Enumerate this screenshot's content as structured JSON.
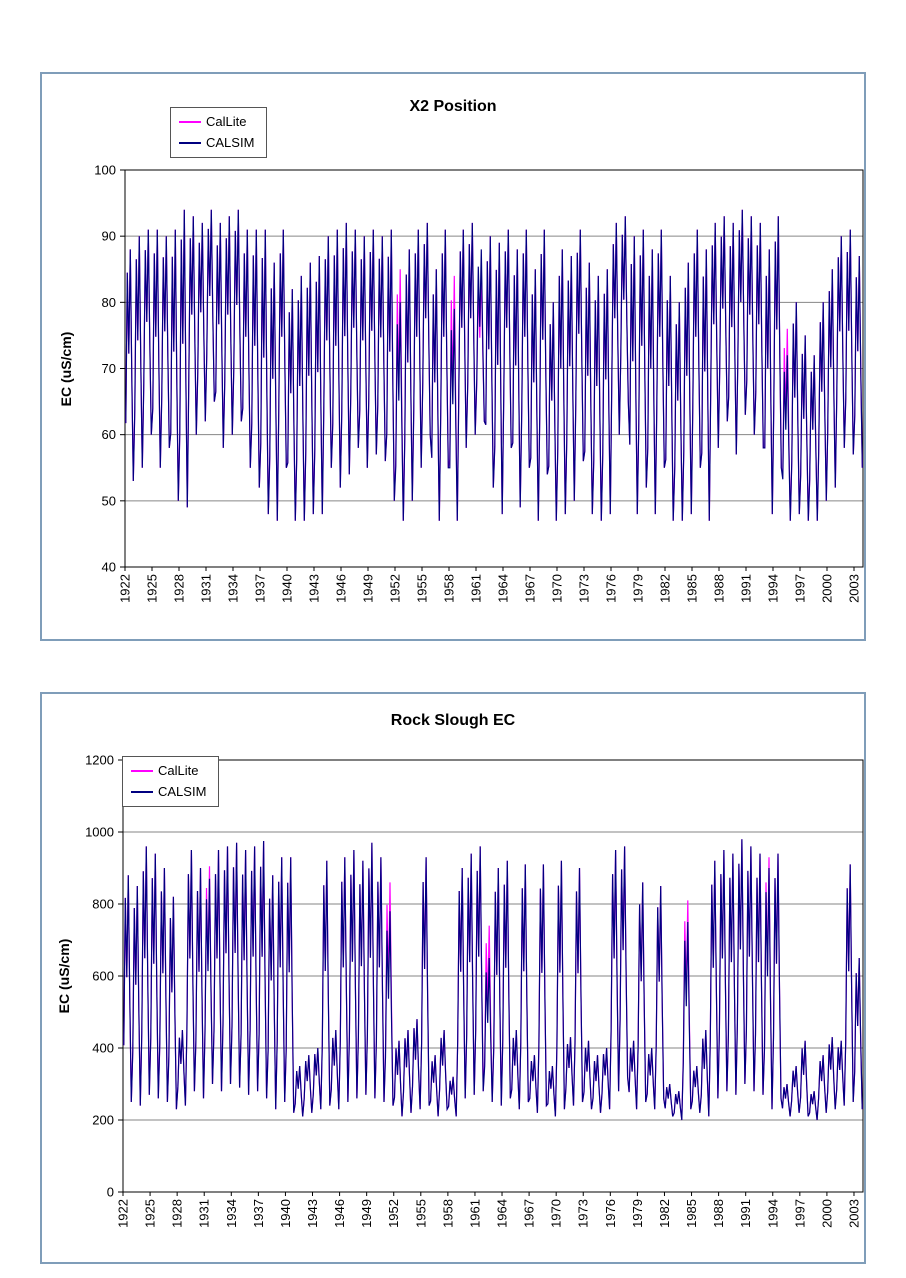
{
  "page": {
    "background": "#ffffff",
    "box_border_color": "#7f9db9"
  },
  "chart_data": [
    {
      "type": "line",
      "title": "X2 Position",
      "xlabel": "",
      "ylabel": "EC (uS/cm)",
      "ylim": [
        40,
        100
      ],
      "yticks": [
        40,
        50,
        60,
        70,
        80,
        90,
        100
      ],
      "grid": "horizontal",
      "legend_position": "top-left",
      "colors": {
        "grid": "#868686",
        "axis": "#000000",
        "plot_background": "#ffffff"
      },
      "x_axis": {
        "start_year": 1922,
        "end_year": 2003,
        "tick_labels": [
          "1922",
          "1925",
          "1928",
          "1931",
          "1934",
          "1937",
          "1940",
          "1943",
          "1946",
          "1949",
          "1952",
          "1955",
          "1958",
          "1961",
          "1964",
          "1967",
          "1970",
          "1973",
          "1976",
          "1979",
          "1982",
          "1985",
          "1988",
          "1991",
          "1994",
          "1997",
          "2000",
          "2003"
        ]
      },
      "note": "Monthly-style seasonal trace estimated from chart; each year is summarized by its annual max/min envelope and rendered with the intra-year fraction pattern. CalLite (magenta) nearly overlaps CALSIM (navy) except small deviations (e.g. 1952, 1958, 1961, 1995).",
      "intra_year_pattern": [
        0.25,
        0.9,
        0.55,
        1.0,
        0.45,
        0.0
      ],
      "series": [
        {
          "name": "CalLite",
          "color": "#FF00FF",
          "yearly_max": [
            88,
            90,
            91,
            91,
            90,
            91,
            94,
            93,
            92,
            94,
            92,
            93,
            94,
            91,
            91,
            91,
            86,
            91,
            82,
            84,
            86,
            87,
            90,
            91,
            92,
            91,
            90,
            91,
            90,
            91,
            85,
            88,
            91,
            92,
            85,
            91,
            84,
            91,
            92,
            85,
            90,
            89,
            91,
            88,
            91,
            85,
            91,
            80,
            88,
            87,
            91,
            86,
            84,
            85,
            92,
            93,
            90,
            91,
            88,
            91,
            84,
            80,
            86,
            91,
            88,
            92,
            93,
            92,
            94,
            93,
            92,
            88,
            93,
            76,
            80,
            75,
            72,
            80,
            85,
            90,
            91,
            87
          ],
          "yearly_min": [
            53,
            55,
            60,
            55,
            58,
            50,
            49,
            60,
            62,
            65,
            58,
            60,
            62,
            55,
            52,
            48,
            47,
            55,
            47,
            47,
            48,
            48,
            55,
            52,
            54,
            58,
            55,
            57,
            56,
            50,
            47,
            50,
            55,
            60,
            47,
            55,
            47,
            58,
            60,
            62,
            52,
            48,
            58,
            49,
            55,
            47,
            54,
            47,
            48,
            50,
            56,
            48,
            47,
            48,
            60,
            65,
            48,
            52,
            48,
            55,
            47,
            47,
            48,
            55,
            47,
            58,
            62,
            57,
            63,
            60,
            58,
            48,
            55,
            47,
            48,
            47,
            47,
            50,
            52,
            58,
            57,
            55
          ]
        },
        {
          "name": "CALSIM",
          "color": "#000080",
          "yearly_max": [
            88,
            90,
            91,
            91,
            90,
            91,
            94,
            93,
            92,
            94,
            92,
            93,
            94,
            91,
            91,
            91,
            86,
            91,
            82,
            84,
            86,
            87,
            90,
            91,
            92,
            91,
            90,
            91,
            90,
            91,
            80,
            88,
            91,
            92,
            85,
            91,
            79,
            91,
            92,
            88,
            90,
            89,
            91,
            88,
            91,
            85,
            91,
            80,
            88,
            87,
            91,
            86,
            84,
            85,
            92,
            93,
            90,
            91,
            88,
            91,
            84,
            80,
            86,
            91,
            88,
            92,
            93,
            92,
            94,
            93,
            92,
            88,
            93,
            72,
            80,
            75,
            72,
            80,
            85,
            90,
            91,
            87
          ],
          "yearly_min": [
            53,
            55,
            60,
            55,
            58,
            50,
            49,
            60,
            62,
            65,
            58,
            60,
            62,
            55,
            52,
            48,
            47,
            55,
            47,
            47,
            48,
            48,
            55,
            52,
            54,
            58,
            55,
            57,
            56,
            50,
            47,
            50,
            55,
            60,
            47,
            55,
            47,
            58,
            60,
            62,
            52,
            48,
            58,
            49,
            55,
            47,
            54,
            47,
            48,
            50,
            56,
            48,
            47,
            48,
            60,
            65,
            48,
            52,
            48,
            55,
            47,
            47,
            48,
            55,
            47,
            58,
            62,
            57,
            63,
            60,
            58,
            48,
            55,
            47,
            48,
            47,
            47,
            50,
            52,
            58,
            57,
            55
          ]
        }
      ]
    },
    {
      "type": "line",
      "title": "Rock Slough EC",
      "xlabel": "",
      "ylabel": "EC (uS/cm)",
      "ylim": [
        0,
        1200
      ],
      "yticks": [
        0,
        200,
        400,
        600,
        800,
        1000,
        1200
      ],
      "grid": "horizontal",
      "legend_position": "top-left",
      "colors": {
        "grid": "#868686",
        "axis": "#000000",
        "plot_background": "#ffffff"
      },
      "x_axis": {
        "start_year": 1922,
        "end_year": 2003,
        "tick_labels": [
          "1922",
          "1925",
          "1928",
          "1931",
          "1934",
          "1937",
          "1940",
          "1943",
          "1946",
          "1949",
          "1952",
          "1955",
          "1958",
          "1961",
          "1964",
          "1967",
          "1970",
          "1973",
          "1976",
          "1979",
          "1982",
          "1985",
          "1988",
          "1991",
          "1994",
          "1997",
          "2000",
          "2003"
        ]
      },
      "note": "Monthly-style seasonal trace estimated from chart; each year is summarized by its annual max/min envelope and rendered with the intra-year fraction pattern. CalLite (magenta) nearly overlaps CALSIM (navy) except small deviations (e.g. 1931, 1951, 1962, 1984, 1993).",
      "intra_year_pattern": [
        0.25,
        0.9,
        0.55,
        1.0,
        0.45,
        0.0
      ],
      "series": [
        {
          "name": "CalLite",
          "color": "#FF00FF",
          "yearly_max": [
            880,
            850,
            960,
            940,
            900,
            820,
            450,
            950,
            900,
            905,
            950,
            960,
            970,
            950,
            960,
            975,
            880,
            930,
            930,
            350,
            380,
            400,
            920,
            450,
            930,
            950,
            920,
            970,
            930,
            860,
            420,
            450,
            480,
            930,
            380,
            450,
            320,
            900,
            940,
            960,
            740,
            900,
            920,
            450,
            910,
            380,
            910,
            350,
            920,
            430,
            900,
            420,
            380,
            400,
            950,
            960,
            420,
            860,
            400,
            850,
            300,
            280,
            810,
            350,
            450,
            920,
            950,
            940,
            980,
            960,
            940,
            930,
            940,
            300,
            350,
            420,
            280,
            380,
            430,
            420,
            910,
            650
          ],
          "yearly_min": [
            250,
            240,
            270,
            260,
            250,
            230,
            240,
            280,
            260,
            300,
            280,
            300,
            290,
            270,
            280,
            260,
            230,
            250,
            220,
            210,
            220,
            230,
            240,
            230,
            250,
            260,
            270,
            260,
            250,
            240,
            210,
            220,
            230,
            240,
            210,
            230,
            210,
            260,
            270,
            280,
            250,
            240,
            260,
            230,
            250,
            220,
            240,
            210,
            230,
            240,
            250,
            230,
            220,
            230,
            280,
            320,
            230,
            250,
            230,
            260,
            210,
            200,
            230,
            220,
            210,
            260,
            280,
            270,
            300,
            280,
            270,
            230,
            260,
            210,
            220,
            210,
            200,
            220,
            230,
            240,
            250,
            230
          ]
        },
        {
          "name": "CALSIM",
          "color": "#000080",
          "yearly_max": [
            880,
            850,
            960,
            940,
            900,
            820,
            450,
            950,
            900,
            870,
            950,
            960,
            970,
            950,
            960,
            975,
            880,
            930,
            930,
            350,
            380,
            400,
            920,
            450,
            930,
            950,
            920,
            970,
            930,
            780,
            420,
            450,
            480,
            930,
            380,
            450,
            320,
            900,
            940,
            960,
            650,
            900,
            920,
            450,
            910,
            380,
            910,
            350,
            920,
            430,
            900,
            420,
            380,
            400,
            950,
            960,
            420,
            860,
            400,
            850,
            300,
            280,
            750,
            350,
            450,
            920,
            950,
            940,
            980,
            960,
            940,
            900,
            940,
            300,
            350,
            420,
            280,
            380,
            430,
            420,
            910,
            650
          ],
          "yearly_min": [
            250,
            240,
            270,
            260,
            250,
            230,
            240,
            280,
            260,
            300,
            280,
            300,
            290,
            270,
            280,
            260,
            230,
            250,
            220,
            210,
            220,
            230,
            240,
            230,
            250,
            260,
            270,
            260,
            250,
            240,
            210,
            220,
            230,
            240,
            210,
            230,
            210,
            260,
            270,
            280,
            250,
            240,
            260,
            230,
            250,
            220,
            240,
            210,
            230,
            240,
            250,
            230,
            220,
            230,
            280,
            320,
            230,
            250,
            230,
            260,
            210,
            200,
            230,
            220,
            210,
            260,
            280,
            270,
            300,
            280,
            270,
            230,
            260,
            210,
            220,
            210,
            200,
            220,
            230,
            240,
            250,
            230
          ]
        }
      ]
    }
  ]
}
